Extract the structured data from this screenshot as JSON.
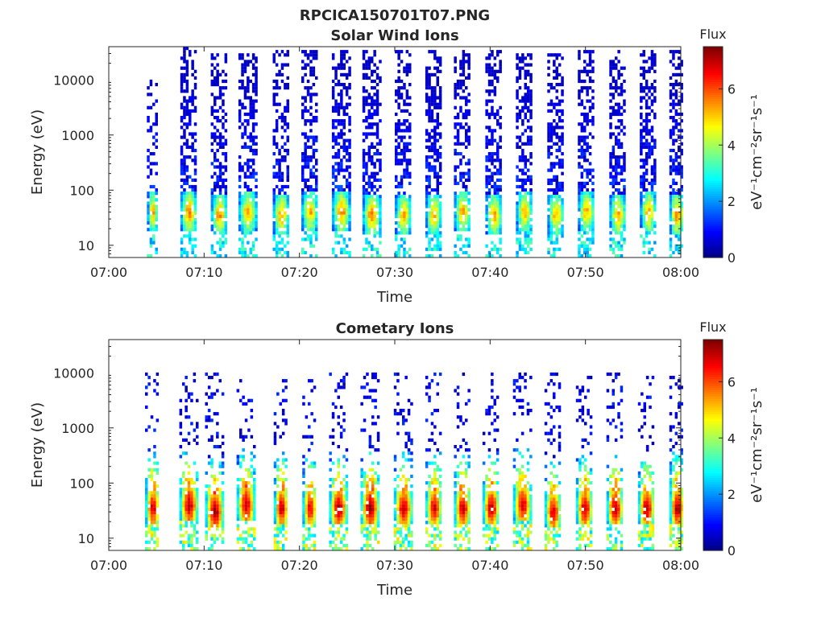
{
  "figure_title": "RPCICA150701T07.PNG",
  "chart_data": [
    {
      "type": "heatmap",
      "title": "Solar Wind Ions",
      "xlabel": "Time",
      "ylabel": "Energy (eV)",
      "x_ticks": [
        "07:00",
        "07:10",
        "07:20",
        "07:30",
        "07:40",
        "07:50",
        "08:00"
      ],
      "xlim": [
        "07:00",
        "08:00"
      ],
      "y_ticks": [
        {
          "value": 10,
          "label": "10"
        },
        {
          "value": 100,
          "label": "100"
        },
        {
          "value": 1000,
          "label": "1000"
        },
        {
          "value": 10000,
          "label": "10000"
        }
      ],
      "y_scale": "log",
      "ylim": [
        6,
        40000
      ],
      "colorbar": {
        "title": "Flux",
        "label": "eV⁻¹cm⁻²sr⁻¹s⁻¹",
        "range": [
          0,
          7.5
        ],
        "ticks": [
          {
            "value": 0,
            "label": "0"
          },
          {
            "value": 2,
            "label": "2"
          },
          {
            "value": 4,
            "label": "4"
          },
          {
            "value": 6,
            "label": "6"
          }
        ],
        "colormap": "jet"
      },
      "bursts": [
        {
          "center": "07:04.5",
          "width_min": 1.0,
          "peak_flux": 5.0,
          "peak_energy_eV": 40,
          "max_energy_eV": 10000,
          "density": 0.35
        },
        {
          "center": "07:08.3",
          "width_min": 1.6,
          "peak_flux": 5.3,
          "peak_energy_eV": 40,
          "max_energy_eV": 40000,
          "density": 0.65
        },
        {
          "center": "07:11.5",
          "width_min": 1.6,
          "peak_flux": 5.2,
          "peak_energy_eV": 35,
          "max_energy_eV": 30000,
          "density": 0.65
        },
        {
          "center": "07:14.5",
          "width_min": 1.8,
          "peak_flux": 5.0,
          "peak_energy_eV": 40,
          "max_energy_eV": 30000,
          "density": 0.65
        },
        {
          "center": "07:18.0",
          "width_min": 1.6,
          "peak_flux": 5.1,
          "peak_energy_eV": 35,
          "max_energy_eV": 35000,
          "density": 0.65
        },
        {
          "center": "07:21.0",
          "width_min": 1.6,
          "peak_flux": 5.0,
          "peak_energy_eV": 40,
          "max_energy_eV": 35000,
          "density": 0.65
        },
        {
          "center": "07:24.3",
          "width_min": 1.8,
          "peak_flux": 5.2,
          "peak_energy_eV": 40,
          "max_energy_eV": 35000,
          "density": 0.65
        },
        {
          "center": "07:27.5",
          "width_min": 1.8,
          "peak_flux": 5.4,
          "peak_energy_eV": 35,
          "max_energy_eV": 35000,
          "density": 0.65
        },
        {
          "center": "07:30.8",
          "width_min": 1.6,
          "peak_flux": 5.1,
          "peak_energy_eV": 35,
          "max_energy_eV": 35000,
          "density": 0.65
        },
        {
          "center": "07:34.0",
          "width_min": 1.6,
          "peak_flux": 5.0,
          "peak_energy_eV": 35,
          "max_energy_eV": 35000,
          "density": 0.65
        },
        {
          "center": "07:37.0",
          "width_min": 1.6,
          "peak_flux": 5.0,
          "peak_energy_eV": 40,
          "max_energy_eV": 35000,
          "density": 0.65
        },
        {
          "center": "07:40.3",
          "width_min": 1.6,
          "peak_flux": 5.1,
          "peak_energy_eV": 35,
          "max_energy_eV": 35000,
          "density": 0.65
        },
        {
          "center": "07:43.5",
          "width_min": 1.6,
          "peak_flux": 4.9,
          "peak_energy_eV": 40,
          "max_energy_eV": 30000,
          "density": 0.65
        },
        {
          "center": "07:46.8",
          "width_min": 1.6,
          "peak_flux": 4.9,
          "peak_energy_eV": 35,
          "max_energy_eV": 30000,
          "density": 0.65
        },
        {
          "center": "07:50.0",
          "width_min": 1.6,
          "peak_flux": 5.0,
          "peak_energy_eV": 40,
          "max_energy_eV": 35000,
          "density": 0.65
        },
        {
          "center": "07:53.3",
          "width_min": 1.6,
          "peak_flux": 5.1,
          "peak_energy_eV": 35,
          "max_energy_eV": 35000,
          "density": 0.65
        },
        {
          "center": "07:56.5",
          "width_min": 1.6,
          "peak_flux": 5.0,
          "peak_energy_eV": 40,
          "max_energy_eV": 35000,
          "density": 0.65
        },
        {
          "center": "07:59.5",
          "width_min": 1.4,
          "peak_flux": 5.3,
          "peak_energy_eV": 35,
          "max_energy_eV": 35000,
          "density": 0.6
        }
      ]
    },
    {
      "type": "heatmap",
      "title": "Cometary Ions",
      "xlabel": "Time",
      "ylabel": "Energy (eV)",
      "x_ticks": [
        "07:00",
        "07:10",
        "07:20",
        "07:30",
        "07:40",
        "07:50",
        "08:00"
      ],
      "xlim": [
        "07:00",
        "08:00"
      ],
      "y_ticks": [
        {
          "value": 10,
          "label": "10"
        },
        {
          "value": 100,
          "label": "100"
        },
        {
          "value": 1000,
          "label": "1000"
        },
        {
          "value": 10000,
          "label": "10000"
        }
      ],
      "y_scale": "log",
      "ylim": [
        6,
        40000
      ],
      "colorbar": {
        "title": "Flux",
        "label": "eV⁻¹cm⁻²sr⁻¹s⁻¹",
        "range": [
          0,
          7.5
        ],
        "ticks": [
          {
            "value": 0,
            "label": "0"
          },
          {
            "value": 2,
            "label": "2"
          },
          {
            "value": 4,
            "label": "4"
          },
          {
            "value": 6,
            "label": "6"
          }
        ],
        "colormap": "jet"
      },
      "bursts": [
        {
          "center": "07:04.5",
          "width_min": 1.4,
          "peak_flux": 6.8,
          "peak_energy_eV": 35,
          "max_energy_eV": 10000,
          "density": 0.18
        },
        {
          "center": "07:08.3",
          "width_min": 1.8,
          "peak_flux": 7.0,
          "peak_energy_eV": 40,
          "max_energy_eV": 10000,
          "density": 0.18
        },
        {
          "center": "07:11.0",
          "width_min": 1.8,
          "peak_flux": 7.2,
          "peak_energy_eV": 30,
          "max_energy_eV": 10000,
          "density": 0.18
        },
        {
          "center": "07:14.3",
          "width_min": 1.8,
          "peak_flux": 6.9,
          "peak_energy_eV": 40,
          "max_energy_eV": 10000,
          "density": 0.18
        },
        {
          "center": "07:18.0",
          "width_min": 1.4,
          "peak_flux": 6.9,
          "peak_energy_eV": 35,
          "max_energy_eV": 10000,
          "density": 0.18
        },
        {
          "center": "07:21.0",
          "width_min": 1.4,
          "peak_flux": 6.6,
          "peak_energy_eV": 35,
          "max_energy_eV": 10000,
          "density": 0.18
        },
        {
          "center": "07:24.0",
          "width_min": 1.8,
          "peak_flux": 7.1,
          "peak_energy_eV": 35,
          "max_energy_eV": 10000,
          "density": 0.18
        },
        {
          "center": "07:27.3",
          "width_min": 1.8,
          "peak_flux": 7.3,
          "peak_energy_eV": 35,
          "max_energy_eV": 10000,
          "density": 0.18
        },
        {
          "center": "07:30.8",
          "width_min": 1.8,
          "peak_flux": 6.9,
          "peak_energy_eV": 35,
          "max_energy_eV": 10000,
          "density": 0.18
        },
        {
          "center": "07:34.0",
          "width_min": 1.6,
          "peak_flux": 6.8,
          "peak_energy_eV": 35,
          "max_energy_eV": 10000,
          "density": 0.18
        },
        {
          "center": "07:37.0",
          "width_min": 1.6,
          "peak_flux": 7.0,
          "peak_energy_eV": 35,
          "max_energy_eV": 10000,
          "density": 0.18
        },
        {
          "center": "07:40.0",
          "width_min": 1.6,
          "peak_flux": 7.0,
          "peak_energy_eV": 35,
          "max_energy_eV": 10000,
          "density": 0.18
        },
        {
          "center": "07:43.3",
          "width_min": 1.8,
          "peak_flux": 6.8,
          "peak_energy_eV": 40,
          "max_energy_eV": 10000,
          "density": 0.18
        },
        {
          "center": "07:46.5",
          "width_min": 1.6,
          "peak_flux": 6.7,
          "peak_energy_eV": 30,
          "max_energy_eV": 10000,
          "density": 0.18
        },
        {
          "center": "07:49.8",
          "width_min": 1.6,
          "peak_flux": 6.9,
          "peak_energy_eV": 35,
          "max_energy_eV": 10000,
          "density": 0.18
        },
        {
          "center": "07:53.0",
          "width_min": 1.6,
          "peak_flux": 7.0,
          "peak_energy_eV": 35,
          "max_energy_eV": 10000,
          "density": 0.18
        },
        {
          "center": "07:56.3",
          "width_min": 1.6,
          "peak_flux": 7.0,
          "peak_energy_eV": 35,
          "max_energy_eV": 10000,
          "density": 0.18
        },
        {
          "center": "07:59.5",
          "width_min": 1.4,
          "peak_flux": 7.1,
          "peak_energy_eV": 35,
          "max_energy_eV": 10000,
          "density": 0.18
        }
      ]
    }
  ]
}
